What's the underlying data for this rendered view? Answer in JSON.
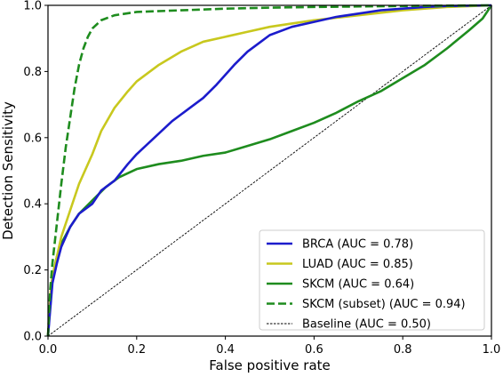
{
  "chart_data": {
    "type": "line",
    "xlabel": "False positive rate",
    "ylabel": "Detection Sensitivity",
    "xlim": [
      0.0,
      1.0
    ],
    "ylim": [
      0.0,
      1.0
    ],
    "xticks": [
      "0.0",
      "0.2",
      "0.4",
      "0.6",
      "0.8",
      "1.0"
    ],
    "yticks": [
      "0.0",
      "0.2",
      "0.4",
      "0.6",
      "0.8",
      "1.0"
    ],
    "grid": false,
    "legend_position": "bottom-right",
    "series": [
      {
        "name": "BRCA (AUC = 0.78)",
        "color": "#1c1ccc",
        "dash": "solid",
        "points": [
          [
            0,
            0
          ],
          [
            0.005,
            0.08
          ],
          [
            0.01,
            0.16
          ],
          [
            0.02,
            0.22
          ],
          [
            0.03,
            0.27
          ],
          [
            0.05,
            0.33
          ],
          [
            0.07,
            0.37
          ],
          [
            0.1,
            0.4
          ],
          [
            0.12,
            0.44
          ],
          [
            0.15,
            0.47
          ],
          [
            0.18,
            0.52
          ],
          [
            0.2,
            0.55
          ],
          [
            0.24,
            0.6
          ],
          [
            0.28,
            0.65
          ],
          [
            0.3,
            0.67
          ],
          [
            0.32,
            0.69
          ],
          [
            0.35,
            0.72
          ],
          [
            0.38,
            0.76
          ],
          [
            0.4,
            0.79
          ],
          [
            0.42,
            0.82
          ],
          [
            0.45,
            0.86
          ],
          [
            0.48,
            0.89
          ],
          [
            0.5,
            0.91
          ],
          [
            0.55,
            0.935
          ],
          [
            0.6,
            0.95
          ],
          [
            0.65,
            0.965
          ],
          [
            0.7,
            0.975
          ],
          [
            0.75,
            0.985
          ],
          [
            0.8,
            0.99
          ],
          [
            0.85,
            0.995
          ],
          [
            0.9,
            0.998
          ],
          [
            1.0,
            1.0
          ]
        ]
      },
      {
        "name": "LUAD (AUC = 0.85)",
        "color": "#c8c81e",
        "dash": "solid",
        "points": [
          [
            0,
            0
          ],
          [
            0.005,
            0.12
          ],
          [
            0.01,
            0.18
          ],
          [
            0.02,
            0.24
          ],
          [
            0.03,
            0.3
          ],
          [
            0.05,
            0.38
          ],
          [
            0.07,
            0.46
          ],
          [
            0.1,
            0.55
          ],
          [
            0.12,
            0.62
          ],
          [
            0.15,
            0.69
          ],
          [
            0.18,
            0.74
          ],
          [
            0.2,
            0.77
          ],
          [
            0.25,
            0.82
          ],
          [
            0.3,
            0.86
          ],
          [
            0.35,
            0.89
          ],
          [
            0.4,
            0.905
          ],
          [
            0.45,
            0.92
          ],
          [
            0.5,
            0.935
          ],
          [
            0.55,
            0.945
          ],
          [
            0.6,
            0.955
          ],
          [
            0.7,
            0.97
          ],
          [
            0.8,
            0.985
          ],
          [
            0.9,
            0.995
          ],
          [
            1.0,
            1.0
          ]
        ]
      },
      {
        "name": "SKCM (AUC = 0.64)",
        "color": "#1e8c1e",
        "dash": "solid",
        "points": [
          [
            0,
            0
          ],
          [
            0.005,
            0.1
          ],
          [
            0.01,
            0.18
          ],
          [
            0.02,
            0.24
          ],
          [
            0.03,
            0.28
          ],
          [
            0.05,
            0.33
          ],
          [
            0.07,
            0.37
          ],
          [
            0.1,
            0.41
          ],
          [
            0.13,
            0.45
          ],
          [
            0.16,
            0.48
          ],
          [
            0.2,
            0.505
          ],
          [
            0.25,
            0.52
          ],
          [
            0.3,
            0.53
          ],
          [
            0.35,
            0.545
          ],
          [
            0.4,
            0.555
          ],
          [
            0.45,
            0.575
          ],
          [
            0.5,
            0.595
          ],
          [
            0.55,
            0.62
          ],
          [
            0.6,
            0.645
          ],
          [
            0.65,
            0.675
          ],
          [
            0.7,
            0.71
          ],
          [
            0.75,
            0.74
          ],
          [
            0.8,
            0.78
          ],
          [
            0.85,
            0.82
          ],
          [
            0.9,
            0.87
          ],
          [
            0.95,
            0.925
          ],
          [
            0.98,
            0.96
          ],
          [
            1.0,
            1.0
          ]
        ]
      },
      {
        "name": "SKCM (subset) (AUC = 0.94)",
        "color": "#1e8c1e",
        "dash": "dashed",
        "points": [
          [
            0,
            0
          ],
          [
            0.005,
            0.14
          ],
          [
            0.01,
            0.22
          ],
          [
            0.02,
            0.34
          ],
          [
            0.03,
            0.46
          ],
          [
            0.04,
            0.57
          ],
          [
            0.05,
            0.66
          ],
          [
            0.06,
            0.75
          ],
          [
            0.07,
            0.82
          ],
          [
            0.08,
            0.87
          ],
          [
            0.09,
            0.905
          ],
          [
            0.1,
            0.93
          ],
          [
            0.12,
            0.955
          ],
          [
            0.15,
            0.97
          ],
          [
            0.2,
            0.98
          ],
          [
            0.3,
            0.985
          ],
          [
            0.4,
            0.99
          ],
          [
            0.5,
            0.993
          ],
          [
            0.6,
            0.995
          ],
          [
            0.8,
            0.998
          ],
          [
            1.0,
            1.0
          ]
        ]
      },
      {
        "name": "Baseline (AUC = 0.50)",
        "color": "#000000",
        "dash": "thin-dashed",
        "points": [
          [
            0,
            0
          ],
          [
            1.0,
            1.0
          ]
        ]
      }
    ]
  }
}
